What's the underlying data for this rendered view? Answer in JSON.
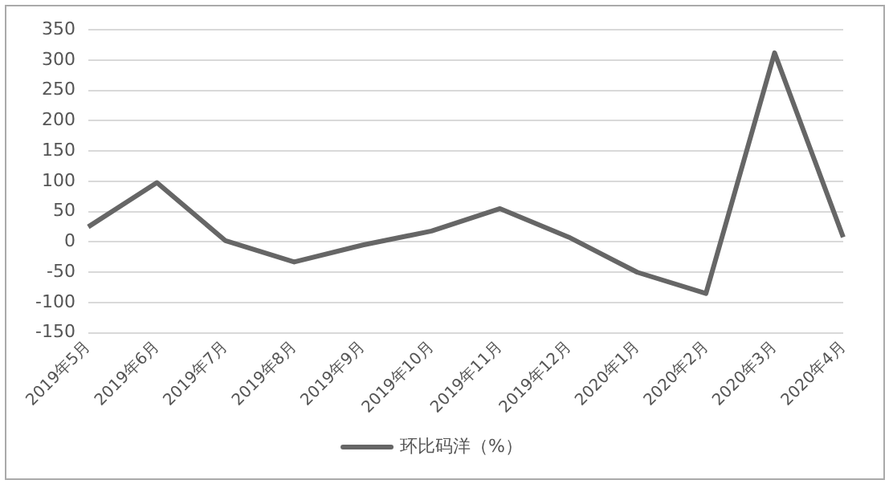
{
  "chart_data": {
    "type": "line",
    "categories": [
      "2019年5月",
      "2019年6月",
      "2019年7月",
      "2019年8月",
      "2019年9月",
      "2019年10月",
      "2019年11月",
      "2019年12月",
      "2020年1月",
      "2020年2月",
      "2020年3月",
      "2020年4月"
    ],
    "series": [
      {
        "name": "环比码洋（%）",
        "color": "#666666",
        "values": [
          25,
          98,
          2,
          -33,
          -5,
          18,
          55,
          8,
          -50,
          -85,
          312,
          8
        ]
      }
    ],
    "ylim": [
      -150,
      350
    ],
    "yticks": [
      -150,
      -100,
      -50,
      0,
      50,
      100,
      150,
      200,
      250,
      300,
      350
    ],
    "grid": "y",
    "legend": "bottom",
    "marker": "none",
    "line_style": "solid"
  }
}
